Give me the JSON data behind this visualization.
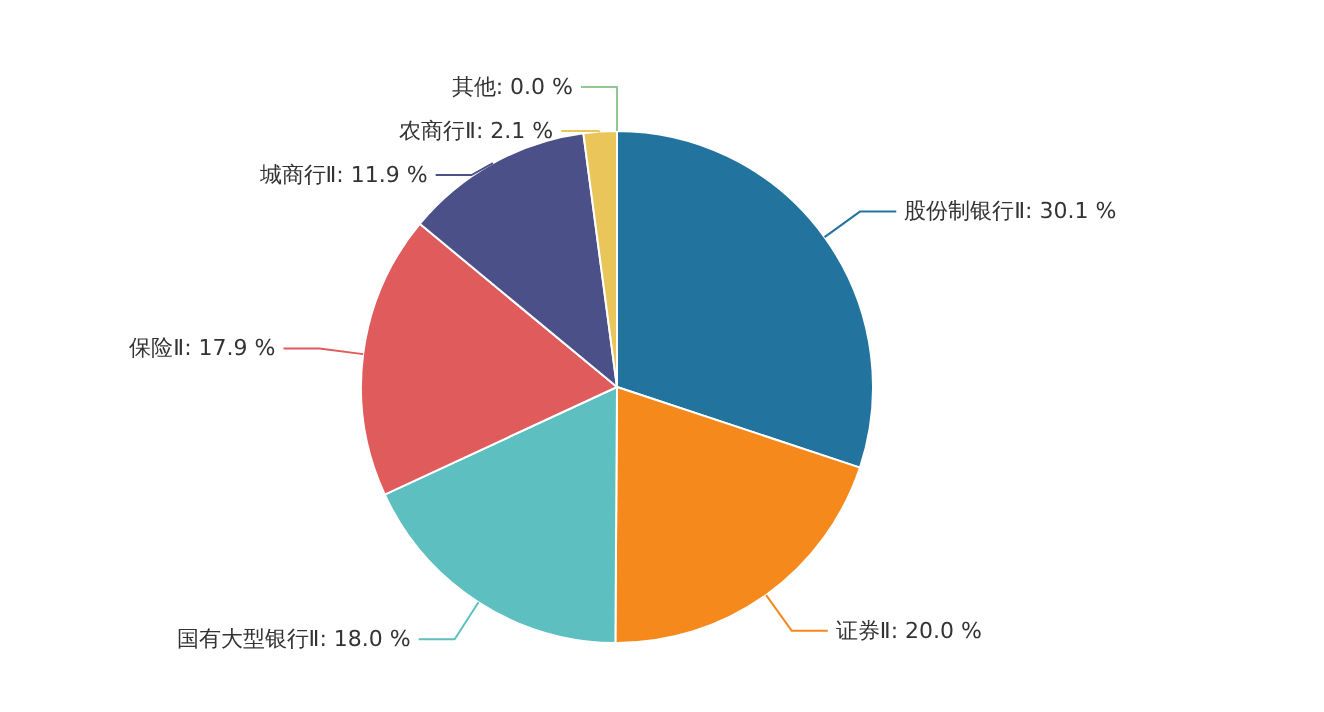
{
  "chart_data": {
    "type": "pie",
    "categories": [
      "股份制银行Ⅱ",
      "证券Ⅱ",
      "国有大型银行Ⅱ",
      "保险Ⅱ",
      "城商行Ⅱ",
      "农商行Ⅱ",
      "其他"
    ],
    "values": [
      30.1,
      20.0,
      18.0,
      17.9,
      11.9,
      2.1,
      0.0
    ],
    "colors": [
      "#22739e",
      "#f5891b",
      "#5dbfbf",
      "#e05b5b",
      "#4b5088",
      "#eac65a",
      "#8ec98f"
    ],
    "value_labels": [
      ": 30.1 %",
      ": 20.0 %",
      ": 18.0 %",
      ": 17.9 %",
      ": 11.9 %",
      ": 2.1 %",
      ": 0.0 %"
    ],
    "legend": false
  }
}
